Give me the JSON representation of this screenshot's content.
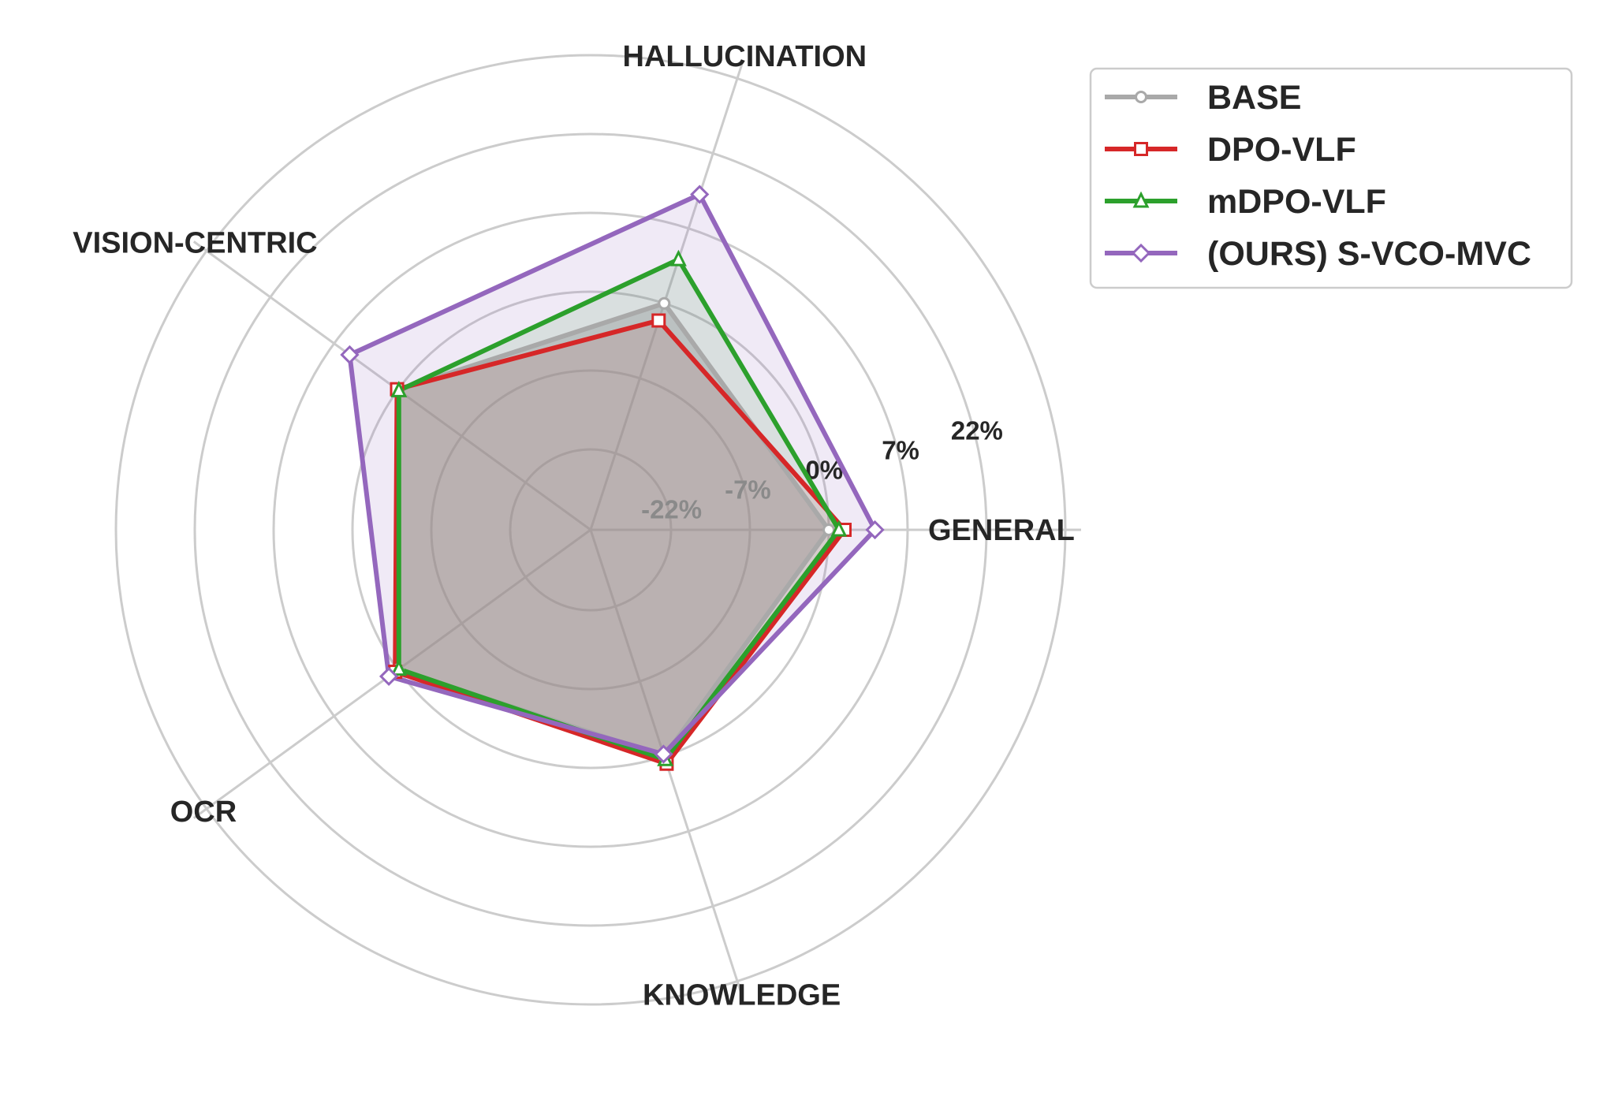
{
  "chart_data": {
    "type": "radar",
    "axes": [
      "GENERAL",
      "HALLUCINATION",
      "VISION-CENTRIC",
      "OCR",
      "KNOWLEDGE"
    ],
    "radial_ticks": [
      "-22%",
      "-7%",
      "0%",
      "7%",
      "22%"
    ],
    "grid": true,
    "legend_position": "top-right",
    "series": [
      {
        "name": "BASE",
        "color": "#a9a9a9",
        "marker": "circle",
        "values": [
          0.0,
          0.0,
          0.0,
          0.0,
          0.0
        ]
      },
      {
        "name": "DPO-VLF",
        "color": "#d62728",
        "marker": "square",
        "values": [
          1.4,
          -1.6,
          0.1,
          0.3,
          0.7
        ]
      },
      {
        "name": "mDPO-VLF",
        "color": "#2ca02c",
        "marker": "triangle",
        "values": [
          0.9,
          4.1,
          -0.1,
          -0.1,
          0.3
        ]
      },
      {
        "name": "(OURS) S-VCO-MVC",
        "color": "#9467bd",
        "marker": "diamond",
        "values": [
          4.1,
          13.8,
          5.3,
          1.0,
          -0.2
        ]
      }
    ]
  }
}
